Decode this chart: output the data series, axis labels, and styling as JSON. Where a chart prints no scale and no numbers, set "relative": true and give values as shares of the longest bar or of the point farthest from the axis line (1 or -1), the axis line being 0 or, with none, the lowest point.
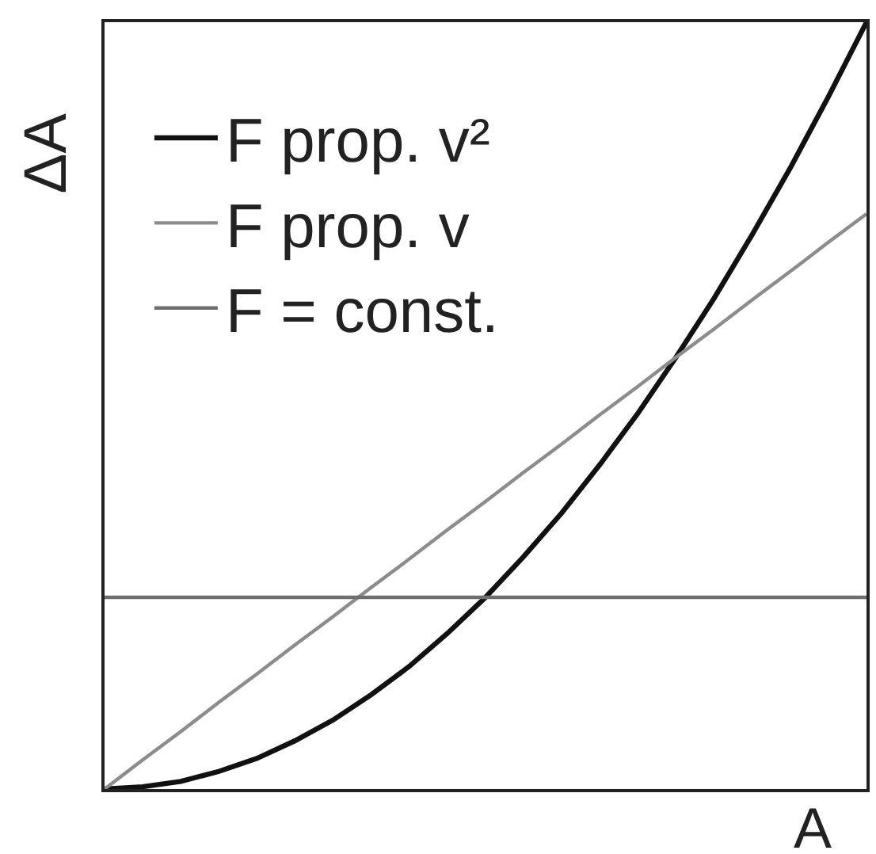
{
  "chart_data": {
    "type": "line",
    "relative": true,
    "xlabel": "A",
    "ylabel": "ΔA",
    "legend": "top left",
    "categories": [
      null,
      null,
      null,
      null,
      null,
      null,
      null,
      null,
      null,
      null,
      null,
      null,
      null,
      null,
      null,
      null,
      null,
      null,
      null,
      null,
      null
    ],
    "series": [
      {
        "name": "F prop. v²",
        "color": "#111111",
        "values": [
          0,
          0.003,
          0.01,
          0.023,
          0.04,
          0.063,
          0.09,
          0.123,
          0.16,
          0.203,
          0.25,
          0.303,
          0.36,
          0.423,
          0.49,
          0.563,
          0.64,
          0.723,
          0.81,
          0.903,
          1
        ]
      },
      {
        "name": "F prop. v",
        "color": "#8c8c8c",
        "values": [
          0,
          0.038,
          0.075,
          0.113,
          0.15,
          0.188,
          0.225,
          0.263,
          0.3,
          0.338,
          0.375,
          0.413,
          0.45,
          0.488,
          0.525,
          0.563,
          0.6,
          0.638,
          0.675,
          0.713,
          0.75
        ]
      },
      {
        "name": "F = const.",
        "color": "#6e6e6e",
        "values": [
          0.25,
          0.25,
          0.25,
          0.25,
          0.25,
          0.25,
          0.25,
          0.25,
          0.25,
          0.25,
          0.25,
          0.25,
          0.25,
          0.25,
          0.25,
          0.25,
          0.25,
          0.25,
          0.25,
          0.25,
          0.25
        ]
      }
    ]
  }
}
